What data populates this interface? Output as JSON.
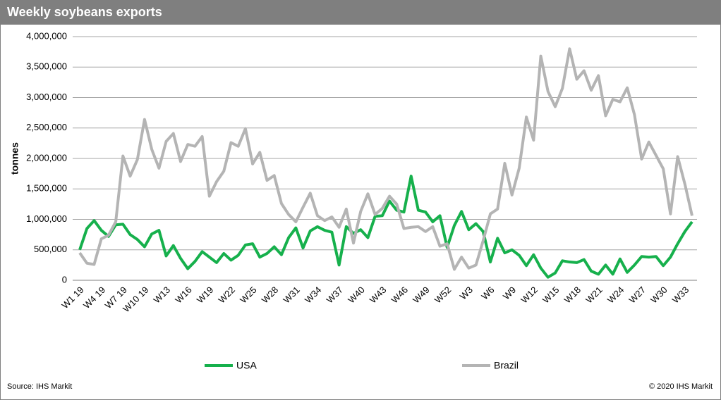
{
  "chart_data": {
    "type": "line",
    "title": "Weekly soybeans exports",
    "y_label": "tonnes",
    "source": "Source: IHS Markit",
    "copyright": "© 2020 IHS Markit",
    "categories": [
      "W1 19",
      null,
      null,
      "W4 19",
      null,
      null,
      "W7 19",
      null,
      null,
      "W10 19",
      null,
      null,
      "W13",
      null,
      null,
      "W16",
      null,
      null,
      "W19",
      null,
      null,
      "W22",
      null,
      null,
      "W25",
      null,
      null,
      "W28",
      null,
      null,
      "W31",
      null,
      null,
      "W34",
      null,
      null,
      "W37",
      null,
      null,
      "W40",
      null,
      null,
      "W43",
      null,
      null,
      "W46",
      null,
      null,
      "W49",
      null,
      null,
      "W52",
      null,
      null,
      "W3",
      null,
      null,
      "W6",
      null,
      null,
      "W9",
      null,
      null,
      "W12",
      null,
      null,
      "W15",
      null,
      null,
      "W18",
      null,
      null,
      "W21",
      null,
      null,
      "W24",
      null,
      null,
      "W27",
      null,
      null,
      "W30",
      null,
      null,
      "W33",
      null
    ],
    "series": [
      {
        "name": "USA",
        "color": "#16b04c",
        "values": [
          500000,
          850000,
          980000,
          820000,
          720000,
          910000,
          920000,
          750000,
          670000,
          550000,
          760000,
          820000,
          400000,
          570000,
          360000,
          190000,
          310000,
          470000,
          380000,
          290000,
          440000,
          330000,
          410000,
          580000,
          600000,
          380000,
          440000,
          550000,
          420000,
          700000,
          860000,
          530000,
          810000,
          880000,
          820000,
          790000,
          250000,
          880000,
          770000,
          830000,
          700000,
          1050000,
          1060000,
          1300000,
          1150000,
          1120000,
          1710000,
          1150000,
          1120000,
          960000,
          1060000,
          540000,
          900000,
          1130000,
          830000,
          930000,
          800000,
          300000,
          690000,
          450000,
          500000,
          410000,
          240000,
          420000,
          200000,
          50000,
          120000,
          320000,
          300000,
          290000,
          340000,
          150000,
          100000,
          250000,
          100000,
          350000,
          130000,
          250000,
          390000,
          380000,
          390000,
          240000,
          380000,
          600000,
          800000,
          960000
        ]
      },
      {
        "name": "Brazil",
        "color": "#b4b4b4",
        "values": [
          450000,
          280000,
          260000,
          680000,
          740000,
          960000,
          2040000,
          1710000,
          1980000,
          2640000,
          2150000,
          1840000,
          2280000,
          2410000,
          1950000,
          2230000,
          2200000,
          2360000,
          1380000,
          1620000,
          1790000,
          2260000,
          2200000,
          2490000,
          1910000,
          2100000,
          1640000,
          1720000,
          1260000,
          1080000,
          960000,
          1200000,
          1430000,
          1060000,
          980000,
          1040000,
          870000,
          1170000,
          610000,
          1130000,
          1420000,
          1080000,
          1180000,
          1380000,
          1250000,
          850000,
          870000,
          880000,
          800000,
          880000,
          560000,
          600000,
          180000,
          380000,
          200000,
          250000,
          650000,
          1090000,
          1170000,
          1920000,
          1400000,
          1840000,
          2680000,
          2300000,
          3680000,
          3100000,
          2850000,
          3150000,
          3800000,
          3300000,
          3440000,
          3120000,
          3360000,
          2700000,
          2970000,
          2930000,
          3160000,
          2720000,
          1990000,
          2270000,
          2050000,
          1830000,
          1090000,
          2030000,
          1580000,
          1060000
        ]
      }
    ],
    "ylim": [
      0,
      4000000
    ],
    "yticks": [
      0,
      {
        "value": 500000,
        "label": "500,000"
      },
      {
        "value": 1000000,
        "label": "1,000,000"
      },
      {
        "value": 1500000,
        "label": "1,500,000"
      },
      {
        "value": 2000000,
        "label": "2,000,000"
      },
      {
        "value": 2500000,
        "label": "2,500,000"
      },
      {
        "value": 3000000,
        "label": "3,000,000"
      },
      {
        "value": 3500000,
        "label": "3,500,000"
      },
      {
        "value": 4000000,
        "label": "4,000,000"
      }
    ],
    "grid": true
  }
}
